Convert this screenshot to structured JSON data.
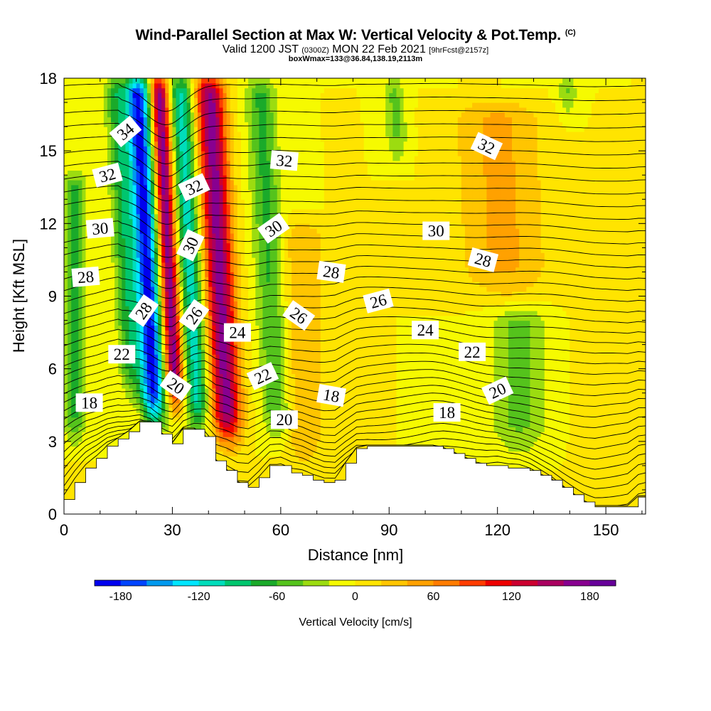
{
  "header": {
    "title": "Wind-Parallel Section at Max W: Vertical Velocity & Pot.Temp.",
    "title_mark": "(C)",
    "subtitle_main": "Valid 1200 JST",
    "subtitle_zulu": "(0300Z)",
    "subtitle_date": "MON 22 Feb 2021",
    "subtitle_fcst": "[9hrFcst@2157z]",
    "subtitle_box": "boxWmax=133@36.84,138.19,2113m"
  },
  "chart_data": {
    "type": "heatmap",
    "title": "Wind-Parallel Section at Max W: Vertical Velocity & Pot.Temp.",
    "xlabel": "Distance [nm]",
    "ylabel": "Height [Kft MSL]",
    "xlim": [
      0,
      161
    ],
    "ylim": [
      0,
      18
    ],
    "x_ticks": [
      0,
      30,
      60,
      90,
      120,
      150
    ],
    "y_ticks": [
      0,
      3,
      6,
      9,
      12,
      15,
      18
    ],
    "colorbar": {
      "label": "Vertical Velocity [cm/s]",
      "ticks": [
        -180,
        -120,
        -60,
        0,
        60,
        120,
        180
      ],
      "range": [
        -200,
        200
      ],
      "step": 20,
      "colors": [
        "#0000ee",
        "#0044ff",
        "#0099ee",
        "#00e6ff",
        "#00ddbb",
        "#00c66e",
        "#1aaa2a",
        "#55c31c",
        "#9cdc10",
        "#f6fa00",
        "#ffe400",
        "#ffc500",
        "#ffa100",
        "#ff7c00",
        "#ff3c00",
        "#ee0000",
        "#cc0030",
        "#aa0060",
        "#880090",
        "#660099"
      ]
    },
    "potential_temperature": {
      "units": "contour labels",
      "levels": [
        18,
        20,
        22,
        24,
        26,
        28,
        30,
        32,
        34
      ],
      "labels": [
        {
          "text": "34",
          "x": 17,
          "y": 15.8,
          "angle": 40
        },
        {
          "text": "32",
          "x": 12,
          "y": 14.0,
          "angle": 15
        },
        {
          "text": "32",
          "x": 36,
          "y": 13.5,
          "angle": 25
        },
        {
          "text": "32",
          "x": 61,
          "y": 14.6,
          "angle": -5
        },
        {
          "text": "32",
          "x": 117,
          "y": 15.2,
          "angle": -25
        },
        {
          "text": "30",
          "x": 10,
          "y": 11.8,
          "angle": 5
        },
        {
          "text": "30",
          "x": 35,
          "y": 11.1,
          "angle": 65
        },
        {
          "text": "30",
          "x": 58,
          "y": 11.8,
          "angle": 35
        },
        {
          "text": "30",
          "x": 103,
          "y": 11.7,
          "angle": 0
        },
        {
          "text": "28",
          "x": 6,
          "y": 9.8,
          "angle": 5
        },
        {
          "text": "28",
          "x": 22,
          "y": 8.4,
          "angle": 55
        },
        {
          "text": "28",
          "x": 74,
          "y": 10.0,
          "angle": -8
        },
        {
          "text": "28",
          "x": 116,
          "y": 10.5,
          "angle": -15
        },
        {
          "text": "26",
          "x": 36,
          "y": 8.2,
          "angle": 55
        },
        {
          "text": "26",
          "x": 65,
          "y": 8.2,
          "angle": -35
        },
        {
          "text": "26",
          "x": 87,
          "y": 8.8,
          "angle": 15
        },
        {
          "text": "24",
          "x": 48,
          "y": 7.5,
          "angle": 0
        },
        {
          "text": "24",
          "x": 100,
          "y": 7.6,
          "angle": 0
        },
        {
          "text": "22",
          "x": 16,
          "y": 6.6,
          "angle": 0
        },
        {
          "text": "22",
          "x": 55,
          "y": 5.7,
          "angle": 25
        },
        {
          "text": "22",
          "x": 113,
          "y": 6.7,
          "angle": 0
        },
        {
          "text": "20",
          "x": 31,
          "y": 5.3,
          "angle": -35
        },
        {
          "text": "20",
          "x": 61,
          "y": 3.9,
          "angle": 0
        },
        {
          "text": "20",
          "x": 120,
          "y": 5.1,
          "angle": 25
        },
        {
          "text": "18",
          "x": 7,
          "y": 4.6,
          "angle": 0
        },
        {
          "text": "18",
          "x": 74,
          "y": 4.9,
          "angle": -10
        },
        {
          "text": "18",
          "x": 106,
          "y": 4.2,
          "angle": 0
        }
      ]
    },
    "terrain_kft": {
      "x": [
        0,
        3,
        6,
        9,
        12,
        15,
        18,
        21,
        24,
        27,
        30,
        33,
        36,
        39,
        42,
        45,
        48,
        51,
        54,
        57,
        60,
        63,
        66,
        69,
        72,
        75,
        78,
        81,
        84,
        87,
        90,
        93,
        96,
        99,
        102,
        105,
        108,
        111,
        114,
        117,
        120,
        123,
        126,
        129,
        132,
        135,
        138,
        141,
        144,
        147,
        150,
        153,
        156,
        159,
        161
      ],
      "h": [
        0.6,
        1.3,
        1.9,
        2.3,
        2.8,
        3.1,
        3.4,
        3.8,
        3.8,
        3.3,
        2.9,
        3.5,
        3.5,
        3.2,
        2.2,
        1.8,
        1.3,
        1.1,
        1.5,
        2.0,
        2.0,
        1.7,
        1.6,
        1.4,
        1.3,
        1.4,
        2.1,
        2.7,
        2.8,
        2.8,
        2.8,
        2.8,
        2.8,
        2.8,
        2.8,
        2.7,
        2.5,
        2.3,
        2.1,
        2.0,
        2.0,
        1.9,
        1.9,
        1.8,
        1.6,
        1.4,
        1.1,
        0.8,
        0.5,
        0.3,
        0.3,
        0.3,
        0.3,
        0.7,
        0.7
      ]
    },
    "vertical_velocity_features": [
      {
        "x": 23,
        "ytop": 18,
        "ybottom": 3.8,
        "w": -190,
        "halfwidth": 3.5
      },
      {
        "x": 17,
        "ytop": 18,
        "ybottom": 5.0,
        "w": -70,
        "halfwidth": 3.0
      },
      {
        "x": 29,
        "ytop": 18,
        "ybottom": 4.5,
        "w": 180,
        "halfwidth": 2.5
      },
      {
        "x": 35,
        "ytop": 18,
        "ybottom": 3.5,
        "w": -110,
        "halfwidth": 3.2
      },
      {
        "x": 43,
        "ytop": 18,
        "ybottom": 3.0,
        "w": 170,
        "halfwidth": 4.0
      },
      {
        "x": 57,
        "ytop": 18,
        "ybottom": 3.0,
        "w": -65,
        "halfwidth": 4.0
      },
      {
        "x": 66,
        "ytop": 12,
        "ybottom": 2.0,
        "w": 40,
        "halfwidth": 6.0
      },
      {
        "x": 3,
        "ytop": 14,
        "ybottom": 3.0,
        "w": -70,
        "halfwidth": 3.0
      },
      {
        "x": 122,
        "ytop": 17,
        "ybottom": 9.0,
        "w": 45,
        "halfwidth": 12.0
      },
      {
        "x": 94,
        "ytop": 18,
        "ybottom": 14.5,
        "w": -45,
        "halfwidth": 3.0
      },
      {
        "x": 126,
        "ytop": 8.5,
        "ybottom": 2.5,
        "w": -45,
        "halfwidth": 8.0
      },
      {
        "x": 142,
        "ytop": 18,
        "ybottom": 16.5,
        "w": -45,
        "halfwidth": 3.0
      },
      {
        "x": 149,
        "ytop": 9.5,
        "ybottom": 0.5,
        "w": 10,
        "halfwidth": 7.0
      }
    ]
  },
  "colors": {
    "background": "#9cdc10",
    "contour": "#000000",
    "terrain": "#ffffff"
  }
}
